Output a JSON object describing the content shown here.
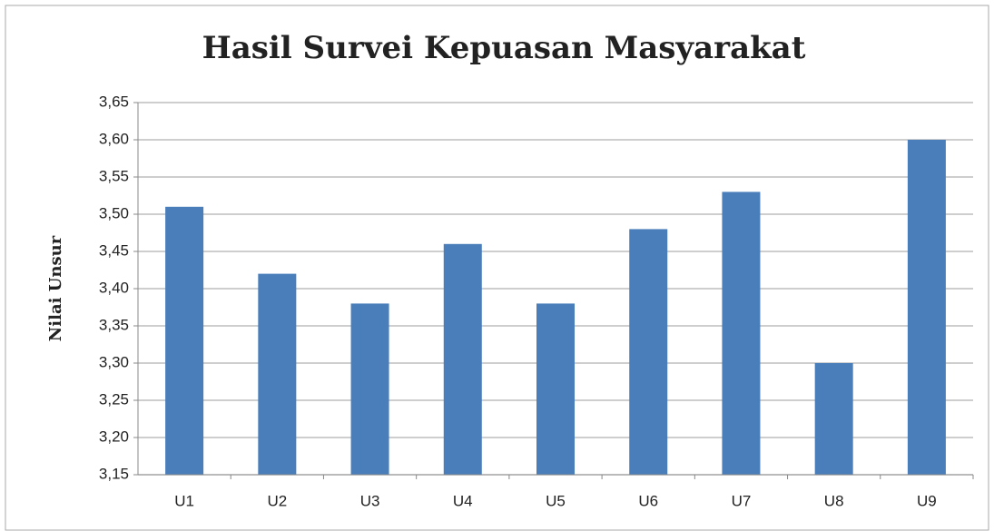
{
  "chart_data": {
    "type": "bar",
    "title": "Hasil Survei Kepuasan Masyarakat",
    "y_label": "Nilai Unsur",
    "categories": [
      "U1",
      "U2",
      "U3",
      "U4",
      "U5",
      "U6",
      "U7",
      "U8",
      "U9"
    ],
    "values": [
      3.51,
      3.42,
      3.38,
      3.46,
      3.38,
      3.48,
      3.53,
      3.3,
      3.6
    ],
    "color": "#4a7ebb",
    "ylim": [
      3.15,
      3.65
    ],
    "yticks": [
      {
        "value": 3.15,
        "label": "3,15"
      },
      {
        "value": 3.2,
        "label": "3,20"
      },
      {
        "value": 3.25,
        "label": "3,25"
      },
      {
        "value": 3.3,
        "label": "3,30"
      },
      {
        "value": 3.35,
        "label": "3,35"
      },
      {
        "value": 3.4,
        "label": "3,40"
      },
      {
        "value": 3.45,
        "label": "3,45"
      },
      {
        "value": 3.5,
        "label": "3,50"
      },
      {
        "value": 3.55,
        "label": "3,55"
      },
      {
        "value": 3.6,
        "label": "3,60"
      },
      {
        "value": 3.65,
        "label": "3,65"
      }
    ],
    "grid": true
  }
}
